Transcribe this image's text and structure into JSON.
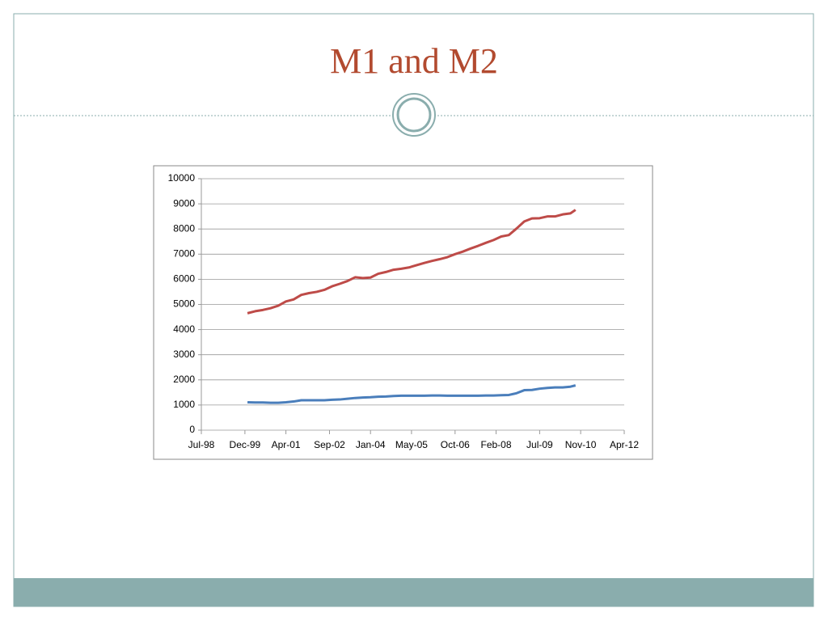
{
  "slide": {
    "title": "M1 and M2"
  },
  "chart_data": {
    "type": "line",
    "x": [
      "2000-01",
      "2000-04",
      "2000-07",
      "2000-10",
      "2001-01",
      "2001-04",
      "2001-07",
      "2001-10",
      "2002-01",
      "2002-04",
      "2002-07",
      "2002-10",
      "2003-01",
      "2003-04",
      "2003-07",
      "2003-10",
      "2004-01",
      "2004-04",
      "2004-07",
      "2004-10",
      "2005-01",
      "2005-04",
      "2005-07",
      "2005-10",
      "2006-01",
      "2006-04",
      "2006-07",
      "2006-10",
      "2007-01",
      "2007-04",
      "2007-07",
      "2007-10",
      "2008-01",
      "2008-04",
      "2008-07",
      "2008-10",
      "2009-01",
      "2009-04",
      "2009-07",
      "2009-10",
      "2010-01",
      "2010-04",
      "2010-07",
      "2010-09"
    ],
    "series": [
      {
        "color": "#4a7ebb",
        "values": [
          1110,
          1100,
          1100,
          1090,
          1090,
          1110,
          1140,
          1190,
          1190,
          1190,
          1190,
          1210,
          1220,
          1250,
          1280,
          1300,
          1310,
          1330,
          1340,
          1360,
          1370,
          1370,
          1370,
          1370,
          1380,
          1380,
          1370,
          1370,
          1370,
          1370,
          1370,
          1380,
          1380,
          1390,
          1400,
          1470,
          1590,
          1600,
          1650,
          1680,
          1700,
          1700,
          1730,
          1780
        ]
      },
      {
        "color": "#be4b48",
        "values": [
          4650,
          4730,
          4780,
          4850,
          4950,
          5120,
          5200,
          5380,
          5450,
          5500,
          5580,
          5720,
          5820,
          5930,
          6080,
          6050,
          6070,
          6220,
          6290,
          6380,
          6420,
          6470,
          6560,
          6650,
          6730,
          6800,
          6880,
          7000,
          7100,
          7220,
          7330,
          7450,
          7560,
          7700,
          7760,
          8020,
          8300,
          8420,
          8430,
          8500,
          8500,
          8580,
          8620,
          8760
        ]
      }
    ],
    "xlim": [
      "1998-07",
      "2012-04"
    ],
    "xticks": [
      {
        "value": "1998-07",
        "label": "Jul-98"
      },
      {
        "value": "1999-12",
        "label": "Dec-99"
      },
      {
        "value": "2001-04",
        "label": "Apr-01"
      },
      {
        "value": "2002-09",
        "label": "Sep-02"
      },
      {
        "value": "2004-01",
        "label": "Jan-04"
      },
      {
        "value": "2005-05",
        "label": "May-05"
      },
      {
        "value": "2006-10",
        "label": "Oct-06"
      },
      {
        "value": "2008-02",
        "label": "Feb-08"
      },
      {
        "value": "2009-07",
        "label": "Jul-09"
      },
      {
        "value": "2010-11",
        "label": "Nov-10"
      },
      {
        "value": "2012-04",
        "label": "Apr-12"
      }
    ],
    "ylim": [
      0,
      10000
    ],
    "yticks": [
      0,
      1000,
      2000,
      3000,
      4000,
      5000,
      6000,
      7000,
      8000,
      9000,
      10000
    ],
    "grid": true
  }
}
